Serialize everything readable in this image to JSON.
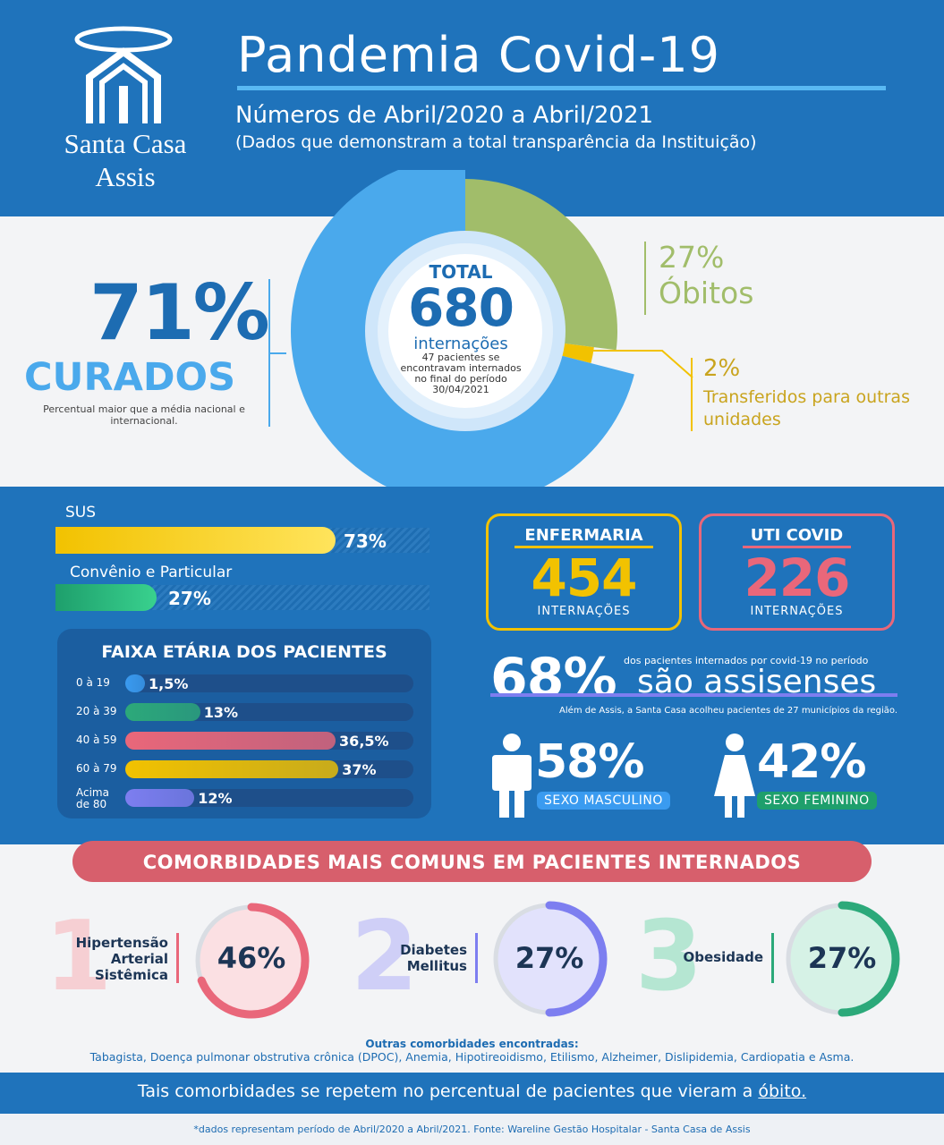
{
  "header": {
    "logo_line1": "Santa Casa",
    "logo_line2": "Assis",
    "title": "Pandemia Covid-19",
    "subtitle": "Números de Abril/2020 a Abril/2021",
    "subtitle_note": "(Dados que demonstram a total transparência da Instituição)"
  },
  "summary": {
    "curados_pct": "71%",
    "curados_label": "CURADOS",
    "curados_note": "Percentual maior que a média nacional e internacional.",
    "obitos_pct": "27%",
    "obitos_label": "Óbitos",
    "transferidos_pct": "2%",
    "transferidos_label": "Transferidos para outras unidades",
    "total_label": "TOTAL",
    "total_value": "680",
    "total_unit": "internações",
    "total_note": "47 pacientes se encontravam internados no final do período 30/04/2021"
  },
  "payer": {
    "sus_label": "SUS",
    "sus_pct": "73%",
    "convenio_label": "Convênio e Particular",
    "convenio_pct": "27%"
  },
  "wards": {
    "enfermaria_title": "ENFERMARIA",
    "enfermaria_value": "454",
    "enfermaria_sub": "INTERNAÇÕES",
    "uti_title": "UTI COVID",
    "uti_value": "226",
    "uti_sub": "INTERNAÇÕES"
  },
  "age": {
    "title": "FAIXA ETÁRIA DOS PACIENTES"
  },
  "residence": {
    "pct": "68%",
    "note1": "dos pacientes internados por covid-19 no período",
    "label": "são assisenses",
    "note2": "Além de Assis, a Santa Casa acolheu pacientes de 27 municípios da região."
  },
  "sex": {
    "male_pct": "58%",
    "male_label": "SEXO MASCULINO",
    "female_pct": "42%",
    "female_label": "SEXO FEMININO"
  },
  "comorbidities": {
    "title": "COMORBIDADES MAIS COMUNS EM PACIENTES INTERNADOS",
    "items": [
      {
        "rank": "1",
        "name": "Hipertensão Arterial Sistêmica",
        "pct": "46%"
      },
      {
        "rank": "2",
        "name": "Diabetes Mellitus",
        "pct": "27%"
      },
      {
        "rank": "3",
        "name": "Obesidade",
        "pct": "27%"
      }
    ],
    "others_title": "Outras comorbidades encontradas:",
    "others_list": "Tabagista, Doença pulmonar obstrutiva crônica (DPOC), Anemia, Hipotireoidismo, Etilismo, Alzheimer, Dislipidemia, Cardiopatia e Asma.",
    "repeat_text": "Tais comorbidades se repetem no percentual de pacientes que vieram a",
    "repeat_underlined": "óbito."
  },
  "footer": "*dados representam período de Abril/2020 a Abril/2021. Fonte: Wareline Gestão Hospitalar - Santa Casa de Assis",
  "colors": {
    "brand_blue": "#1f73bb",
    "curados": "#4aa9ec",
    "obitos": "#a1bd6a",
    "transferidos": "#f2c200",
    "enfermaria": "#f2c200",
    "uti": "#e9677a",
    "comorb_1": "#e9677a",
    "comorb_2": "#7d7ef0",
    "comorb_3": "#2ca97a"
  },
  "chart_data": [
    {
      "type": "pie",
      "labels": [
        "CURADOS",
        "Óbitos",
        "Transferidos para outras unidades"
      ],
      "values": [
        71,
        27,
        2
      ],
      "colors": [
        "#4aa9ec",
        "#a1bd6a",
        "#f2c200"
      ],
      "title": ""
    },
    {
      "type": "bar",
      "categories": [
        "SUS",
        "Convênio e Particular"
      ],
      "values": [
        73,
        27
      ],
      "colors": [
        "#f2c200",
        "#2ca97a"
      ],
      "title": ""
    },
    {
      "type": "bar",
      "title": "FAIXA ETÁRIA DOS PACIENTES",
      "categories": [
        "0 à 19",
        "20 à 39",
        "40 à 59",
        "60 à 79",
        "Acima de 80"
      ],
      "values": [
        1.5,
        13,
        36.5,
        37,
        12
      ],
      "value_labels": [
        "1,5%",
        "13%",
        "36,5%",
        "37%",
        "12%"
      ],
      "colors": [
        "#3a9bf0",
        "#2ca97a",
        "#e9677a",
        "#f2c200",
        "#7d7ef0"
      ]
    },
    {
      "type": "pie",
      "labels": [
        "Hipertensão Arterial Sistêmica",
        "Diabetes Mellitus",
        "Obesidade"
      ],
      "values": [
        46,
        27,
        27
      ],
      "colors": [
        "#e9677a",
        "#7d7ef0",
        "#2ca97a"
      ],
      "title": ""
    }
  ]
}
